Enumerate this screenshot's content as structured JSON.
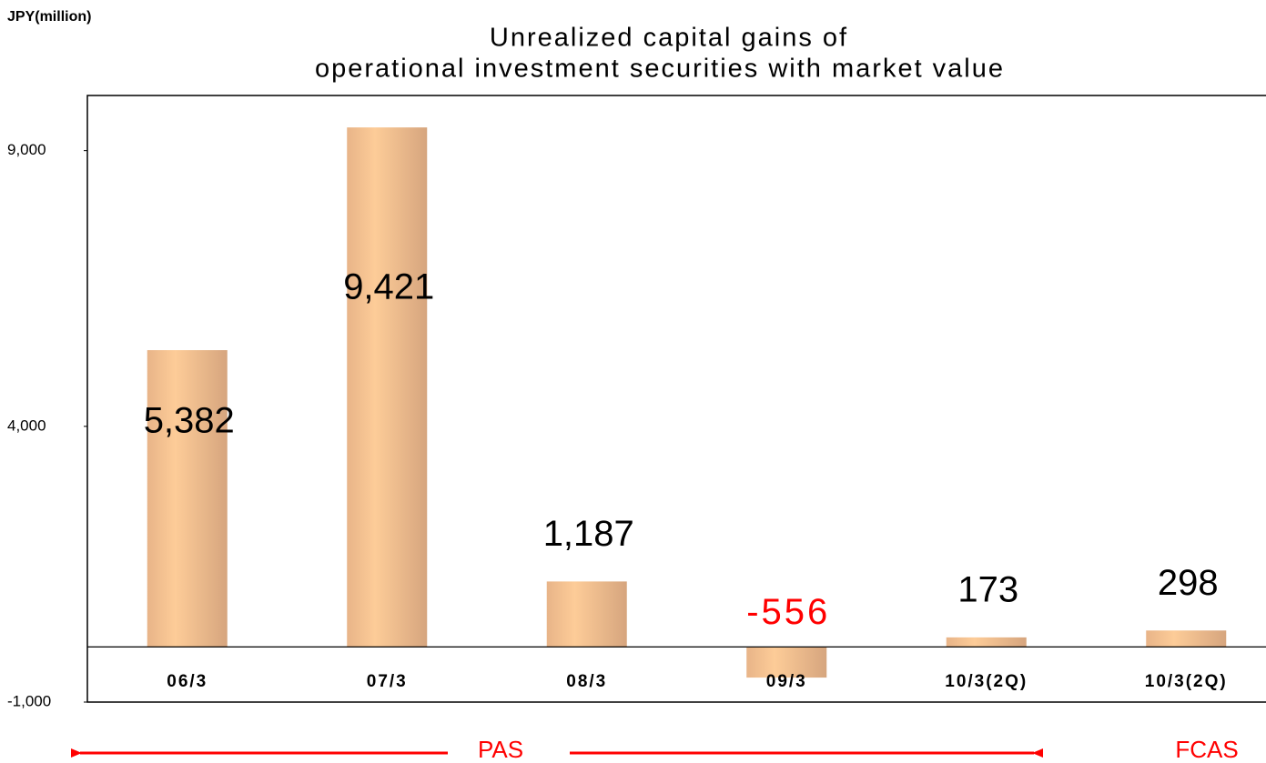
{
  "chart_data": {
    "type": "bar",
    "title": [
      "Unrealized capital gains of",
      "operational investment securities with market value"
    ],
    "y_axis_label": "JPY(million)",
    "categories": [
      "06/3",
      "07/3",
      "08/3",
      "09/3",
      "10/3(2Q)",
      "10/3(2Q)"
    ],
    "values": [
      5382,
      9421,
      1187,
      -556,
      173,
      298
    ],
    "value_labels": [
      "5,382",
      "9,421",
      "1,187",
      "-556",
      "173",
      "298"
    ],
    "color": "#f5c08e",
    "negative_label_color": "#ff0000",
    "ylim": [
      -1000,
      10000
    ],
    "yticks": [
      {
        "value": -1000,
        "label": "-1,000"
      },
      {
        "value": 4000,
        "label": "4,000"
      },
      {
        "value": 9000,
        "label": "9,000"
      }
    ],
    "grid": false,
    "annotations": [
      "PAS",
      "FCAS"
    ]
  }
}
